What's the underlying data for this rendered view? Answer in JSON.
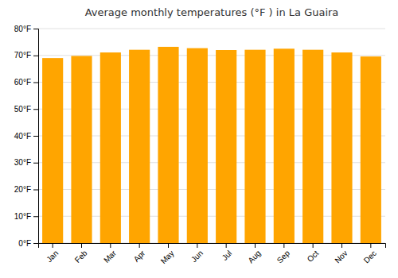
{
  "chart_data": {
    "type": "bar",
    "title": "Average monthly temperatures (°F ) in La Guaira",
    "categories": [
      "Jan",
      "Feb",
      "Mar",
      "Apr",
      "May",
      "Jun",
      "Jul",
      "Aug",
      "Sep",
      "Oct",
      "Nov",
      "Dec"
    ],
    "values": [
      69.0,
      69.8,
      71.1,
      72.1,
      73.2,
      72.7,
      72.0,
      72.1,
      72.5,
      72.1,
      71.1,
      69.6
    ],
    "color": "#FFA500",
    "ylim": [
      0,
      80
    ],
    "yticks": [
      {
        "value": 0,
        "label": "0°F"
      },
      {
        "value": 10,
        "label": "10°F"
      },
      {
        "value": 20,
        "label": "20°F"
      },
      {
        "value": 30,
        "label": "30°F"
      },
      {
        "value": 40,
        "label": "40°F"
      },
      {
        "value": 50,
        "label": "50°F"
      },
      {
        "value": 60,
        "label": "60°F"
      },
      {
        "value": 70,
        "label": "70°F"
      },
      {
        "value": 80,
        "label": "80°F"
      }
    ],
    "grid": true
  }
}
